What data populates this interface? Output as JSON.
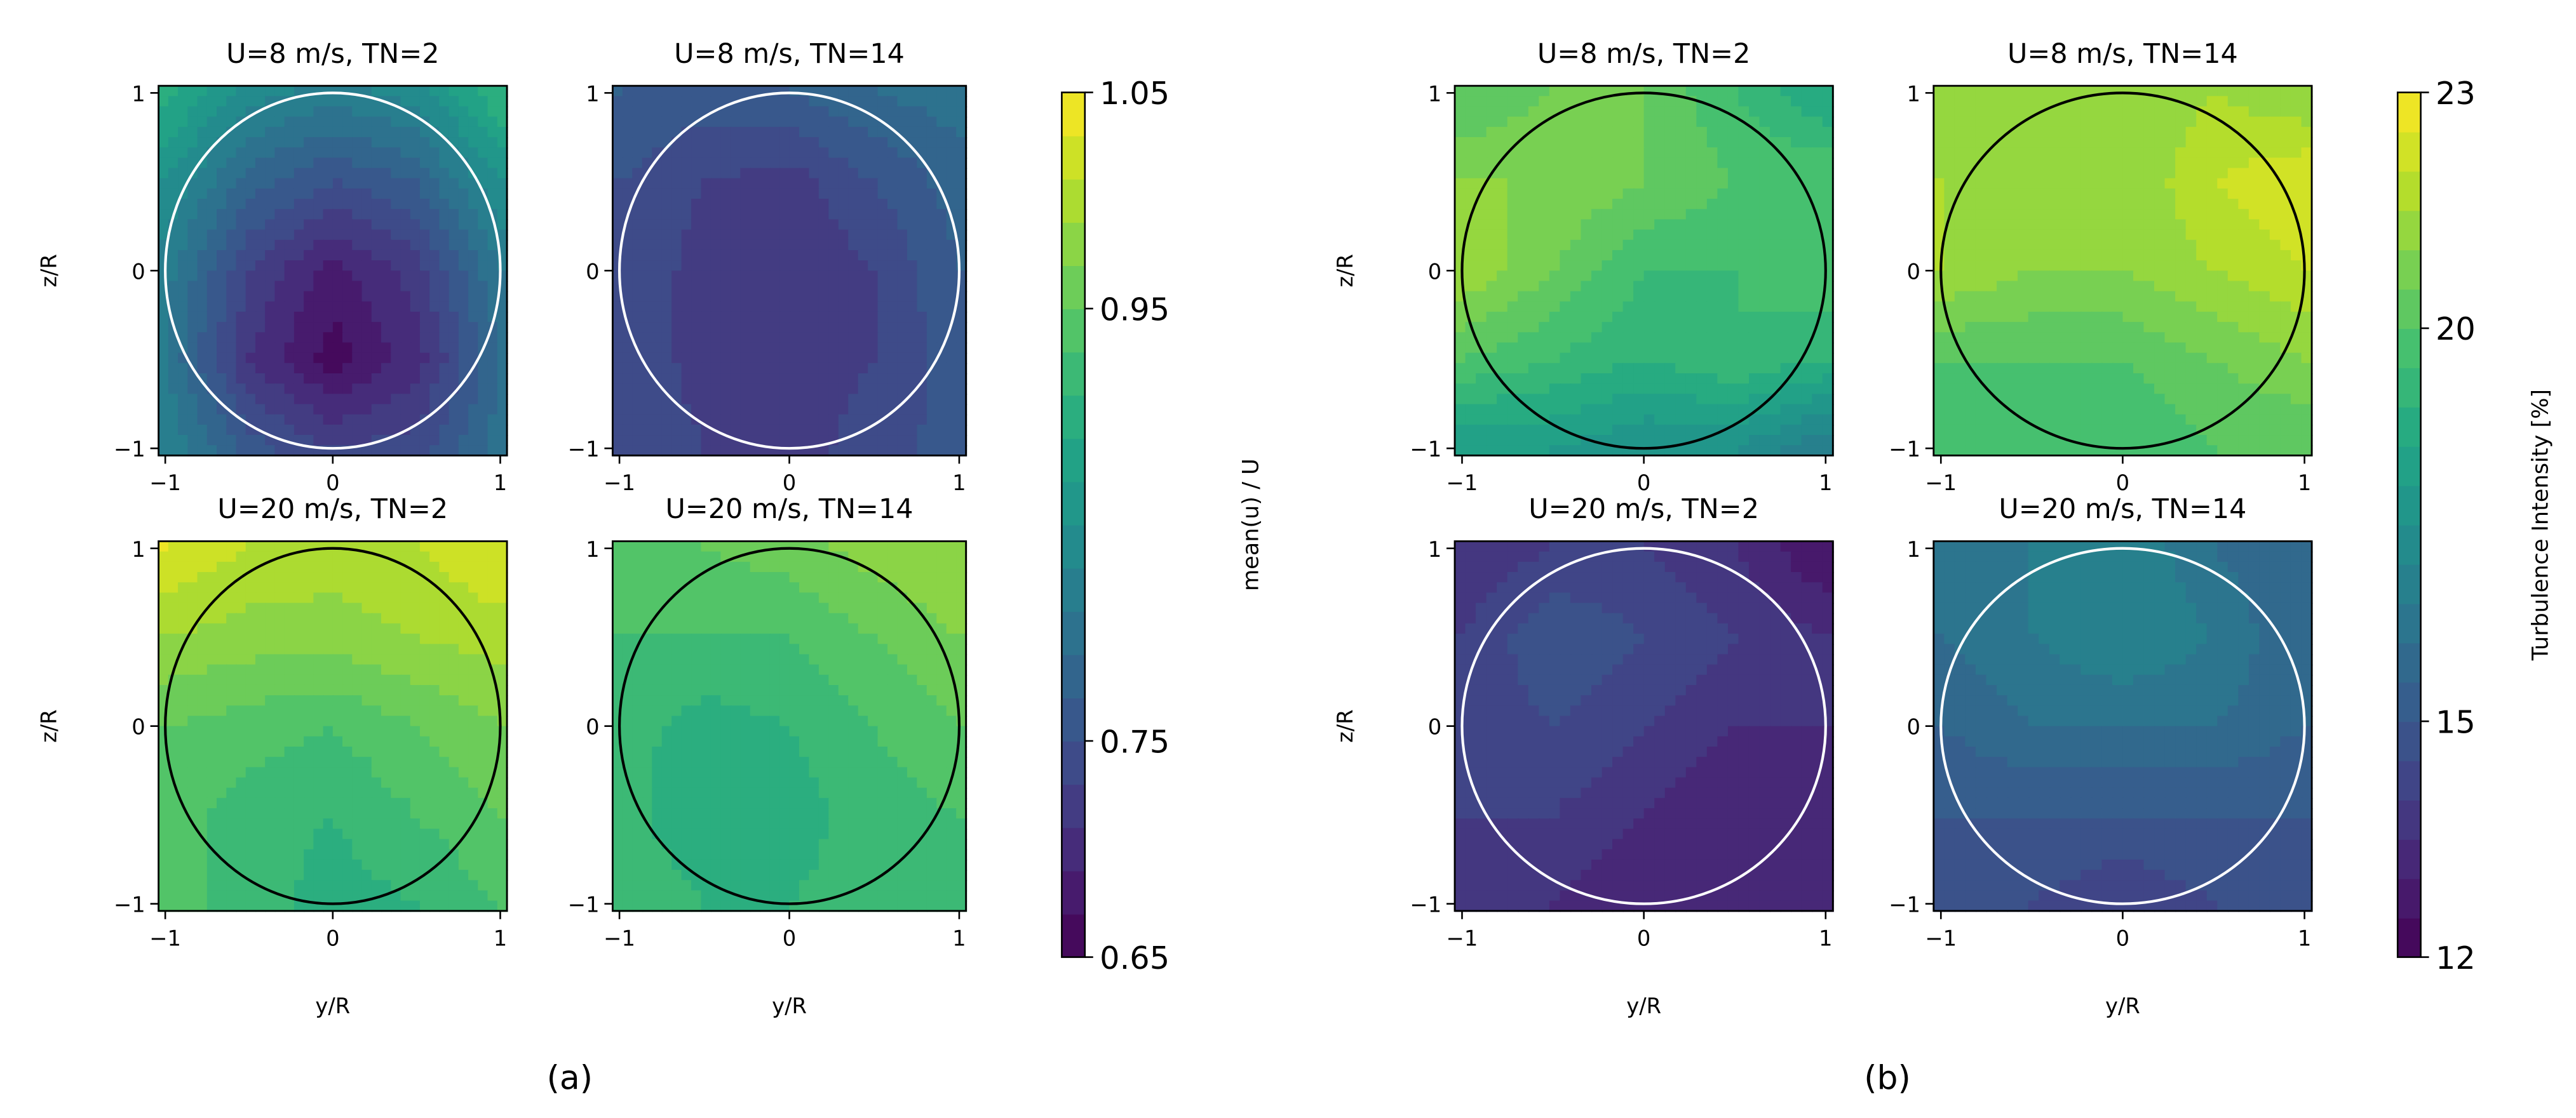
{
  "figure_labels": {
    "a": "(a)",
    "b": "(b)"
  },
  "chart_data": [
    {
      "type": "heatmap",
      "group": "a",
      "colormap": "viridis",
      "colorbar": {
        "label": "mean(u) / U",
        "range": [
          0.65,
          1.05
        ],
        "ticks": [
          1.05,
          0.95,
          0.75,
          0.65
        ],
        "tick_labels": [
          "1.05",
          "0.95",
          "0.75",
          "0.65"
        ],
        "levels_step": 0.02
      },
      "panels": [
        {
          "title": "U=8 m/s, TN=2",
          "xlabel": "",
          "ylabel": "z/R",
          "circle_color": "#ffffff",
          "y": [
            -1,
            -0.5,
            0,
            0.5,
            1
          ],
          "z": [
            1,
            0.5,
            0,
            -0.5,
            -1
          ],
          "values": [
            [
              0.9,
              0.84,
              0.82,
              0.84,
              0.91
            ],
            [
              0.85,
              0.78,
              0.75,
              0.77,
              0.85
            ],
            [
              0.82,
              0.73,
              0.68,
              0.72,
              0.81
            ],
            [
              0.81,
              0.71,
              0.66,
              0.7,
              0.79
            ],
            [
              0.83,
              0.76,
              0.73,
              0.74,
              0.8
            ]
          ]
        },
        {
          "title": "U=8 m/s, TN=14",
          "xlabel": "",
          "ylabel": "",
          "circle_color": "#ffffff",
          "y": [
            -1,
            -0.5,
            0,
            0.5,
            1
          ],
          "z": [
            1,
            0.5,
            0,
            -0.5,
            -1
          ],
          "values": [
            [
              0.77,
              0.76,
              0.77,
              0.79,
              0.8
            ],
            [
              0.75,
              0.73,
              0.72,
              0.75,
              0.78
            ],
            [
              0.75,
              0.72,
              0.71,
              0.73,
              0.77
            ],
            [
              0.75,
              0.72,
              0.72,
              0.73,
              0.76
            ],
            [
              0.75,
              0.73,
              0.72,
              0.74,
              0.76
            ]
          ]
        },
        {
          "title": "U=20 m/s, TN=2",
          "xlabel": "y/R",
          "ylabel": "z/R",
          "circle_color": "#000000",
          "y": [
            -1,
            -0.5,
            0,
            0.5,
            1
          ],
          "z": [
            1,
            0.5,
            0,
            -0.5,
            -1
          ],
          "values": [
            [
              1.03,
              1.01,
              1.0,
              1.01,
              1.03
            ],
            [
              0.99,
              0.98,
              0.98,
              0.99,
              1.0
            ],
            [
              0.95,
              0.94,
              0.93,
              0.95,
              0.97
            ],
            [
              0.94,
              0.92,
              0.91,
              0.93,
              0.95
            ],
            [
              0.94,
              0.92,
              0.9,
              0.91,
              0.93
            ]
          ]
        },
        {
          "title": "U=20 m/s, TN=14",
          "xlabel": "y/R",
          "ylabel": "",
          "circle_color": "#000000",
          "y": [
            -1,
            -0.5,
            0,
            0.5,
            1
          ],
          "z": [
            1,
            0.5,
            0,
            -0.5,
            -1
          ],
          "values": [
            [
              0.95,
              0.95,
              0.96,
              0.98,
              0.99
            ],
            [
              0.93,
              0.93,
              0.93,
              0.95,
              0.97
            ],
            [
              0.92,
              0.9,
              0.91,
              0.93,
              0.95
            ],
            [
              0.92,
              0.89,
              0.9,
              0.92,
              0.93
            ],
            [
              0.93,
              0.91,
              0.91,
              0.92,
              0.93
            ]
          ]
        }
      ],
      "x_ticks": [
        "−1",
        "0",
        "1"
      ],
      "y_ticks": [
        "1",
        "0",
        "−1"
      ],
      "xlim": [
        -1.04,
        1.04
      ],
      "ylim": [
        -1.04,
        1.04
      ]
    },
    {
      "type": "heatmap",
      "group": "b",
      "colormap": "viridis",
      "colorbar": {
        "label": "Turbulence Intensity [%]",
        "range": [
          12,
          23
        ],
        "ticks": [
          23,
          20,
          15,
          12
        ],
        "tick_labels": [
          "23",
          "20",
          "15",
          "12"
        ],
        "levels_step": 0.5
      },
      "panels": [
        {
          "title": "U=8 m/s, TN=2",
          "xlabel": "",
          "ylabel": "z/R",
          "circle_color": "#000000",
          "y": [
            -1,
            -0.5,
            0,
            0.5,
            1
          ],
          "z": [
            1,
            0.5,
            0,
            -0.5,
            -1
          ],
          "values": [
            [
              20,
              20.5,
              20.5,
              19.5,
              18.5
            ],
            [
              21,
              21,
              20.5,
              20,
              20
            ],
            [
              21.5,
              20.5,
              19.5,
              19.5,
              20
            ],
            [
              20,
              19.5,
              19,
              19.5,
              19
            ],
            [
              18,
              18,
              17.5,
              17.5,
              16.5
            ]
          ]
        },
        {
          "title": "U=8 m/s, TN=14",
          "xlabel": "",
          "ylabel": "",
          "circle_color": "#000000",
          "y": [
            -1,
            -0.5,
            0,
            0.5,
            1
          ],
          "z": [
            1,
            0.5,
            0,
            -0.5,
            -1
          ],
          "values": [
            [
              21,
              21,
              21,
              21.5,
              21
            ],
            [
              21.5,
              21.5,
              21,
              22,
              22.5
            ],
            [
              21.5,
              21,
              21,
              21.5,
              22
            ],
            [
              20,
              20,
              20,
              20.5,
              21
            ],
            [
              19.5,
              19.5,
              19.5,
              20,
              20
            ]
          ]
        },
        {
          "title": "U=20 m/s, TN=2",
          "xlabel": "y/R",
          "ylabel": "z/R",
          "circle_color": "#ffffff",
          "y": [
            -1,
            -0.5,
            0,
            0.5,
            1
          ],
          "z": [
            1,
            0.5,
            0,
            -0.5,
            -1
          ],
          "values": [
            [
              13.5,
              14,
              14,
              13.5,
              12.5
            ],
            [
              14,
              15,
              14.5,
              14,
              13.5
            ],
            [
              14,
              14.5,
              14,
              13.5,
              13.5
            ],
            [
              14,
              14,
              13.5,
              13,
              13.5
            ],
            [
              13.5,
              13.5,
              13,
              13,
              13.5
            ]
          ]
        },
        {
          "title": "U=20 m/s, TN=14",
          "xlabel": "y/R",
          "ylabel": "",
          "circle_color": "#ffffff",
          "y": [
            -1,
            -0.5,
            0,
            0.5,
            1
          ],
          "z": [
            1,
            0.5,
            0,
            -0.5,
            -1
          ],
          "values": [
            [
              16,
              16.5,
              17,
              16,
              15.5
            ],
            [
              16,
              16.5,
              17,
              16.5,
              15.5
            ],
            [
              15.5,
              16,
              16,
              16,
              15.5
            ],
            [
              15,
              15,
              15,
              15,
              15
            ],
            [
              14.5,
              14.5,
              14,
              14.5,
              14.5
            ]
          ]
        }
      ],
      "x_ticks": [
        "−1",
        "0",
        "1"
      ],
      "y_ticks": [
        "1",
        "0",
        "−1"
      ],
      "xlim": [
        -1.04,
        1.04
      ],
      "ylim": [
        -1.04,
        1.04
      ]
    }
  ]
}
